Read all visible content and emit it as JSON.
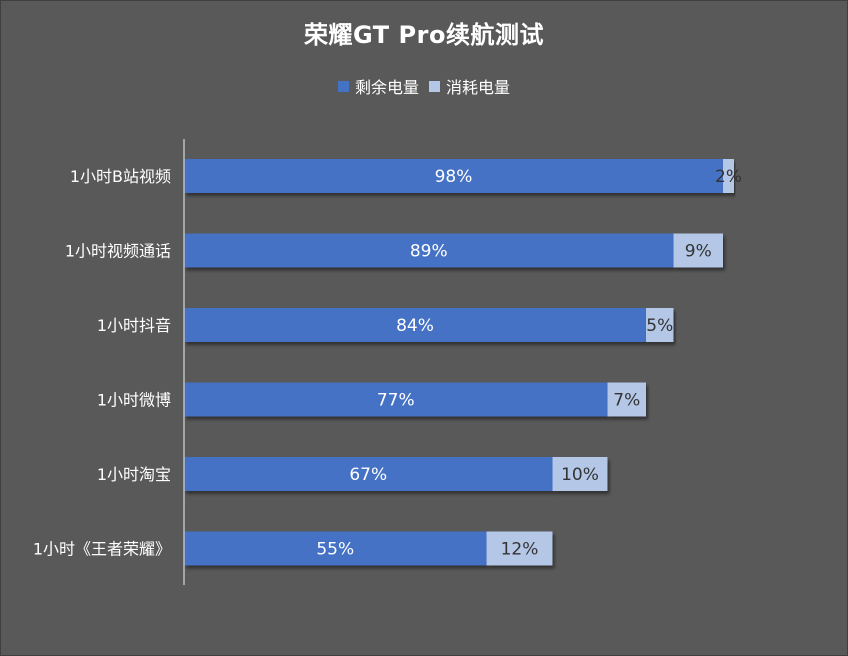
{
  "chart_data": {
    "type": "bar",
    "orientation": "horizontal",
    "stacked": true,
    "title": "荣耀GT Pro续航测试",
    "categories": [
      "1小时B站视频",
      "1小时视频通话",
      "1小时抖音",
      "1小时微博",
      "1小时淘宝",
      "1小时《王者荣耀》"
    ],
    "series": [
      {
        "name": "剩余电量",
        "values": [
          98,
          89,
          84,
          77,
          67,
          55
        ],
        "labels": [
          "98%",
          "89%",
          "84%",
          "77%",
          "67%",
          "55%"
        ],
        "color": "#4472C4"
      },
      {
        "name": "消耗电量",
        "values": [
          2,
          9,
          5,
          7,
          10,
          12
        ],
        "labels": [
          "2%",
          "9%",
          "5%",
          "7%",
          "10%",
          "12%"
        ],
        "color": "#B4C7E7"
      }
    ],
    "xlim": [
      0,
      100
    ],
    "grid": false,
    "legend_position": "top"
  }
}
